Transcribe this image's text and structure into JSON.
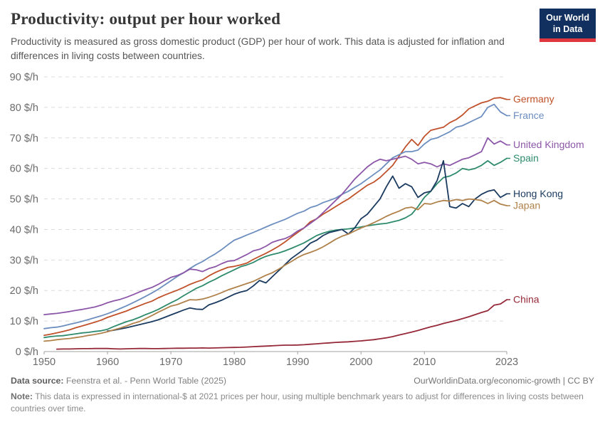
{
  "header": {
    "title": "Productivity: output per hour worked",
    "subtitle": "Productivity is measured as gross domestic product (GDP) per hour of work. This data is adjusted for inflation and differences in living costs between countries.",
    "logo": {
      "line1": "Our World",
      "line2": "in Data",
      "bg": "#12305f",
      "stripe": "#e0373f"
    }
  },
  "chart_data": {
    "type": "line",
    "title": "Productivity: output per hour worked",
    "unit_suffix": " $/h",
    "x_range": [
      1950,
      2023
    ],
    "y_range": [
      0,
      90
    ],
    "x_ticks": [
      1950,
      1960,
      1970,
      1980,
      1990,
      2000,
      2010,
      2023
    ],
    "y_ticks": [
      0,
      10,
      20,
      30,
      40,
      50,
      60,
      70,
      80,
      90
    ],
    "grid": "dashed-horizontal",
    "legend_position": "right-end-labels",
    "colors": {
      "grid": "#dcdcdc",
      "axis": "#a1a1a1",
      "tick_text": "#6b6b6b"
    },
    "series": [
      {
        "name": "Germany",
        "color": "#c0512b",
        "start_year": 1950,
        "values": [
          5.3,
          5.7,
          6.1,
          6.6,
          7.1,
          7.8,
          8.4,
          9.0,
          9.6,
          10.3,
          11.2,
          11.9,
          12.6,
          13.3,
          14.2,
          15.0,
          15.8,
          16.5,
          17.6,
          18.5,
          19.3,
          20.1,
          21.0,
          22.0,
          22.8,
          23.5,
          24.8,
          25.9,
          26.8,
          27.6,
          27.9,
          28.4,
          29.0,
          30.2,
          31.2,
          32.2,
          33.3,
          34.5,
          35.9,
          37.5,
          39.0,
          40.5,
          42.5,
          43.5,
          45.0,
          46.2,
          47.5,
          48.8,
          50.0,
          51.5,
          53.0,
          54.5,
          55.5,
          57.0,
          59.0,
          61.0,
          64.0,
          67.0,
          69.5,
          67.5,
          70.5,
          72.5,
          73.0,
          73.5,
          75.0,
          76.0,
          77.5,
          79.5,
          80.5,
          81.5,
          82.0,
          83.0,
          83.2,
          82.6
        ]
      },
      {
        "name": "France",
        "color": "#6c8ebf",
        "start_year": 1950,
        "values": [
          7.5,
          7.8,
          8.0,
          8.4,
          8.9,
          9.4,
          9.9,
          10.5,
          11.1,
          11.7,
          12.4,
          13.2,
          14.1,
          15.0,
          16.0,
          17.0,
          18.1,
          19.2,
          20.4,
          21.8,
          23.2,
          24.6,
          25.8,
          27.2,
          28.5,
          29.5,
          30.8,
          32.0,
          33.4,
          35.0,
          36.5,
          37.3,
          38.2,
          39.0,
          39.9,
          40.8,
          41.7,
          42.5,
          43.3,
          44.3,
          45.3,
          46.0,
          47.2,
          47.8,
          48.8,
          49.5,
          50.3,
          51.5,
          52.5,
          53.8,
          55.0,
          56.5,
          58.0,
          59.5,
          61.5,
          63.5,
          64.5,
          65.5,
          65.5,
          66.0,
          68.0,
          69.5,
          70.0,
          71.0,
          72.0,
          73.5,
          74.0,
          75.0,
          76.0,
          77.0,
          80.0,
          81.0,
          78.5,
          77.3
        ]
      },
      {
        "name": "United Kingdom",
        "color": "#8c57a8",
        "start_year": 1950,
        "values": [
          12.1,
          12.3,
          12.5,
          12.8,
          13.1,
          13.5,
          13.8,
          14.2,
          14.6,
          15.2,
          16.0,
          16.6,
          17.1,
          17.8,
          18.6,
          19.5,
          20.3,
          21.0,
          22.0,
          23.2,
          24.3,
          24.9,
          25.8,
          27.0,
          26.8,
          26.2,
          27.2,
          27.8,
          28.8,
          29.6,
          29.8,
          30.8,
          31.8,
          33.0,
          33.5,
          34.5,
          35.8,
          36.5,
          37.0,
          38.0,
          39.5,
          40.5,
          42.0,
          43.5,
          45.5,
          47.5,
          49.5,
          51.5,
          54.0,
          56.5,
          58.5,
          60.5,
          62.0,
          63.0,
          62.5,
          63.0,
          63.5,
          64.0,
          63.0,
          61.5,
          62.0,
          61.5,
          60.5,
          61.5,
          61.0,
          62.0,
          63.0,
          63.5,
          64.5,
          65.5,
          70.0,
          68.0,
          69.0,
          67.7
        ]
      },
      {
        "name": "Spain",
        "color": "#2e8b6e",
        "start_year": 1950,
        "values": [
          4.6,
          4.9,
          5.1,
          5.2,
          5.5,
          5.8,
          6.1,
          6.3,
          6.6,
          6.8,
          7.3,
          8.2,
          9.0,
          9.8,
          10.4,
          11.2,
          12.1,
          12.9,
          13.8,
          14.9,
          16.0,
          17.0,
          18.3,
          19.5,
          20.7,
          21.6,
          22.7,
          23.7,
          24.8,
          25.8,
          26.8,
          27.8,
          28.4,
          29.2,
          30.3,
          31.2,
          31.8,
          32.3,
          33.0,
          33.8,
          34.7,
          35.6,
          36.8,
          38.0,
          38.8,
          39.4,
          39.8,
          40.0,
          40.2,
          40.5,
          40.8,
          41.2,
          41.5,
          41.8,
          42.0,
          42.5,
          43.0,
          43.8,
          45.0,
          47.5,
          50.5,
          52.5,
          55.0,
          57.0,
          57.5,
          58.5,
          60.0,
          59.5,
          60.0,
          61.0,
          62.5,
          61.0,
          62.0,
          63.3
        ]
      },
      {
        "name": "Hong Kong",
        "color": "#1a3a5f",
        "start_year": 1960,
        "values": [
          6.7,
          7.0,
          7.4,
          7.8,
          8.3,
          8.8,
          9.3,
          9.8,
          10.4,
          11.2,
          12.0,
          12.8,
          13.6,
          14.3,
          13.9,
          13.8,
          15.3,
          16.0,
          16.8,
          17.8,
          18.8,
          19.5,
          20.0,
          21.5,
          23.3,
          22.5,
          24.5,
          26.5,
          28.5,
          30.5,
          32.0,
          33.5,
          35.5,
          36.5,
          38.0,
          39.0,
          39.5,
          40.0,
          38.5,
          40.5,
          43.5,
          45.0,
          47.5,
          50.0,
          54.0,
          57.5,
          53.5,
          55.0,
          54.0,
          50.5,
          52.0,
          52.5,
          56.0,
          62.5,
          47.5,
          47.0,
          48.5,
          47.5,
          50.0,
          51.5,
          52.5,
          53.0,
          50.5,
          51.7
        ]
      },
      {
        "name": "Japan",
        "color": "#b0824b",
        "start_year": 1950,
        "values": [
          3.4,
          3.6,
          3.9,
          4.1,
          4.3,
          4.6,
          4.9,
          5.3,
          5.6,
          6.0,
          6.5,
          7.1,
          7.7,
          8.4,
          9.2,
          9.8,
          10.8,
          11.8,
          12.9,
          13.9,
          14.9,
          15.4,
          16.2,
          17.0,
          16.9,
          17.2,
          17.8,
          18.5,
          19.3,
          20.2,
          20.9,
          21.6,
          22.3,
          23.0,
          24.0,
          25.0,
          25.8,
          27.0,
          28.3,
          29.5,
          30.8,
          31.8,
          32.5,
          33.3,
          34.3,
          35.5,
          36.8,
          37.8,
          38.5,
          39.5,
          40.5,
          41.3,
          42.2,
          43.2,
          44.3,
          45.2,
          46.0,
          47.0,
          47.3,
          46.5,
          48.5,
          48.3,
          49.0,
          49.5,
          49.3,
          49.8,
          49.5,
          50.0,
          49.8,
          49.5,
          48.5,
          49.5,
          48.3,
          47.8
        ]
      },
      {
        "name": "China",
        "color": "#962939",
        "start_year": 1952,
        "values": [
          0.8,
          0.85,
          0.85,
          0.9,
          0.95,
          0.95,
          1.0,
          1.0,
          1.0,
          0.9,
          0.85,
          0.9,
          0.95,
          1.0,
          1.0,
          0.95,
          0.95,
          1.0,
          1.05,
          1.1,
          1.1,
          1.15,
          1.15,
          1.2,
          1.15,
          1.2,
          1.25,
          1.3,
          1.35,
          1.4,
          1.5,
          1.6,
          1.7,
          1.8,
          1.9,
          2.0,
          2.1,
          2.1,
          2.15,
          2.25,
          2.4,
          2.55,
          2.7,
          2.85,
          3.0,
          3.1,
          3.2,
          3.35,
          3.5,
          3.7,
          3.9,
          4.2,
          4.5,
          4.9,
          5.4,
          5.9,
          6.4,
          6.9,
          7.5,
          8.1,
          8.6,
          9.2,
          9.7,
          10.2,
          10.8,
          11.4,
          12.1,
          12.8,
          13.4,
          15.2,
          15.6,
          17.0
        ]
      }
    ]
  },
  "footer": {
    "data_source_label": "Data source:",
    "data_source": "Feenstra et al. - Penn World Table (2025)",
    "link": "OurWorldinData.org/economic-growth | CC BY",
    "note_label": "Note:",
    "note": "This data is expressed in international-$ at 2021 prices per hour, using multiple benchmark years to adjust for differences in living costs between countries over time."
  }
}
